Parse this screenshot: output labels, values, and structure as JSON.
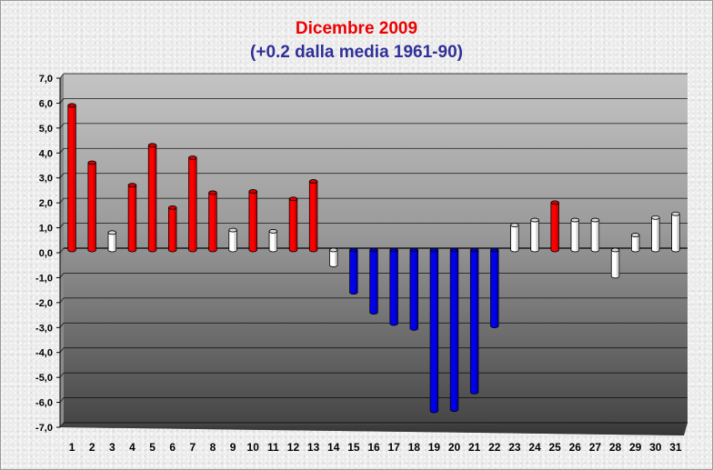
{
  "chart_data": {
    "type": "bar",
    "title": "Dicembre 2009",
    "subtitle": "(+0.2 dalla media 1961-90)",
    "title_color": "#ee0000",
    "subtitle_color": "#303098",
    "categories": [
      "1",
      "2",
      "3",
      "4",
      "5",
      "6",
      "7",
      "8",
      "9",
      "10",
      "11",
      "12",
      "13",
      "14",
      "15",
      "16",
      "17",
      "18",
      "19",
      "20",
      "21",
      "22",
      "23",
      "24",
      "25",
      "26",
      "27",
      "28",
      "29",
      "30",
      "31"
    ],
    "values": [
      5.8,
      3.5,
      0.7,
      2.6,
      4.2,
      1.7,
      3.7,
      2.3,
      0.8,
      2.35,
      0.75,
      2.05,
      2.75,
      -0.6,
      -1.7,
      -2.5,
      -2.95,
      -3.15,
      -6.45,
      -6.4,
      -5.7,
      -3.05,
      1.0,
      1.2,
      1.9,
      1.2,
      1.2,
      -1.05,
      0.6,
      1.3,
      1.45
    ],
    "bar_colors": [
      "red",
      "red",
      "white",
      "red",
      "red",
      "red",
      "red",
      "red",
      "white",
      "red",
      "white",
      "red",
      "red",
      "white",
      "blue",
      "blue",
      "blue",
      "blue",
      "blue",
      "blue",
      "blue",
      "blue",
      "white",
      "white",
      "red",
      "white",
      "white",
      "white",
      "white",
      "white",
      "white"
    ],
    "color_map": {
      "red": "#ff0000",
      "blue": "#0000ee",
      "white": "#ffffff"
    },
    "ylim": [
      -7,
      7
    ],
    "y_ticks": [
      "-7,0",
      "-6,0",
      "-5,0",
      "-4,0",
      "-3,0",
      "-2,0",
      "-1,0",
      "0,0",
      "1,0",
      "2,0",
      "3,0",
      "4,0",
      "5,0",
      "6,0",
      "7,0"
    ],
    "xlabel": "",
    "ylabel": "",
    "grid": true,
    "legend": "none"
  }
}
